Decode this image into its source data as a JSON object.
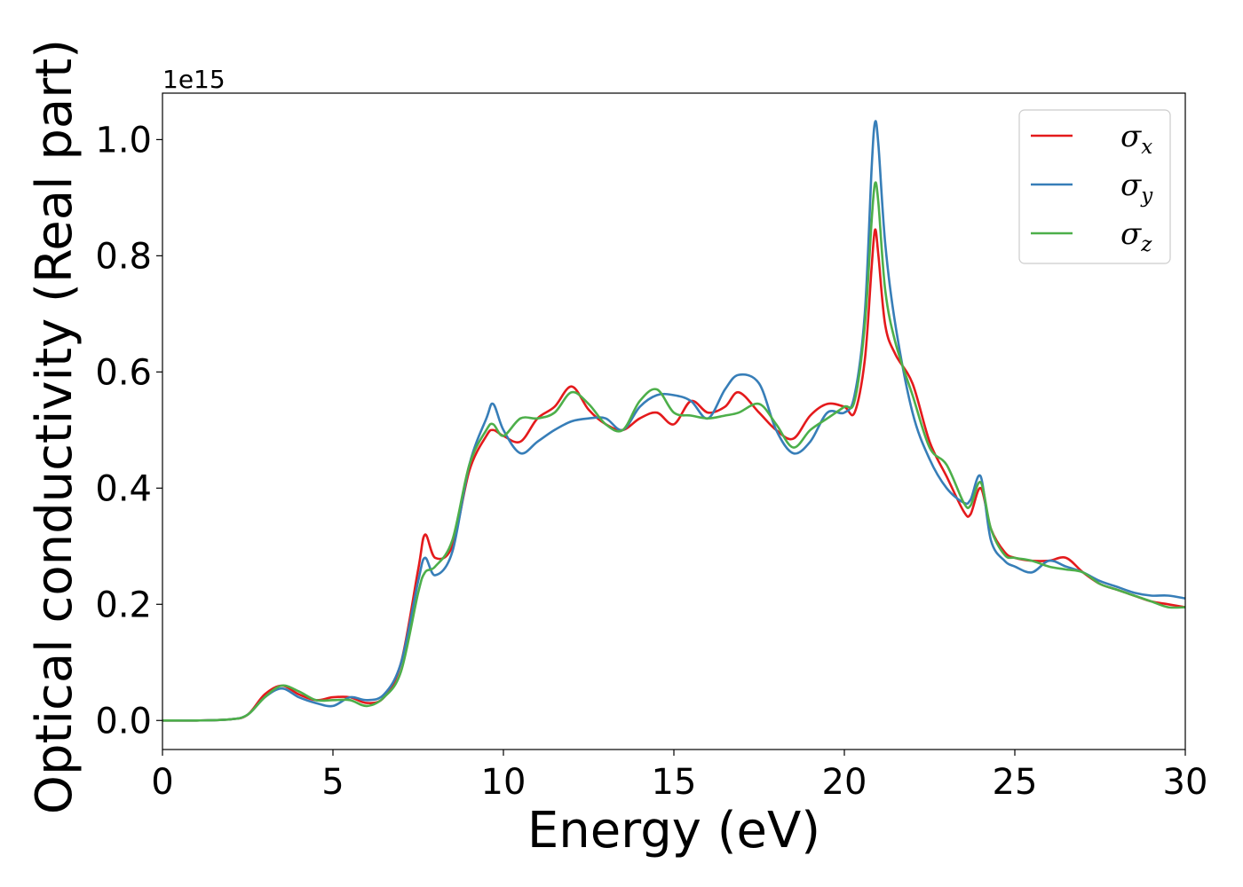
{
  "chart_data": {
    "type": "line",
    "title": "",
    "xlabel": "Energy (eV)",
    "ylabel": "Optical conductivity (Real part)",
    "y_offset_text": "1e15",
    "xlim": [
      0,
      30
    ],
    "ylim": [
      -0.05,
      1.08
    ],
    "x_ticks": [
      0,
      5,
      10,
      15,
      20,
      25,
      30
    ],
    "x_tick_labels": [
      "0",
      "5",
      "10",
      "15",
      "20",
      "25",
      "30"
    ],
    "y_ticks": [
      0.0,
      0.2,
      0.4,
      0.6,
      0.8,
      1.0
    ],
    "y_tick_labels": [
      "0.0",
      "0.2",
      "0.4",
      "0.6",
      "0.8",
      "1.0"
    ],
    "grid": false,
    "legend_position": "top-right",
    "x": [
      0,
      1,
      2,
      2.5,
      3,
      3.5,
      4,
      4.5,
      5,
      5.5,
      6,
      6.5,
      7,
      7.5,
      7.7,
      8,
      8.5,
      9,
      9.5,
      9.7,
      10,
      10.5,
      11,
      11.5,
      12,
      12.5,
      13,
      13.5,
      14,
      14.5,
      15,
      15.5,
      16,
      16.5,
      16.9,
      17.5,
      18,
      18.5,
      19,
      19.5,
      20,
      20.3,
      20.6,
      20.8,
      20.9,
      21,
      21.2,
      21.5,
      22,
      22.5,
      23,
      23.5,
      23.7,
      24,
      24.3,
      24.7,
      25,
      25.5,
      26,
      26.5,
      27,
      27.5,
      28,
      28.5,
      29,
      29.5,
      30
    ],
    "series": [
      {
        "name": "σx",
        "color": "#e41a1c",
        "values": [
          0,
          0,
          0.002,
          0.01,
          0.045,
          0.06,
          0.045,
          0.035,
          0.04,
          0.04,
          0.03,
          0.04,
          0.1,
          0.26,
          0.32,
          0.28,
          0.3,
          0.43,
          0.49,
          0.5,
          0.49,
          0.48,
          0.52,
          0.54,
          0.575,
          0.535,
          0.51,
          0.5,
          0.52,
          0.53,
          0.51,
          0.55,
          0.53,
          0.54,
          0.565,
          0.53,
          0.5,
          0.485,
          0.525,
          0.545,
          0.54,
          0.53,
          0.62,
          0.78,
          0.845,
          0.8,
          0.68,
          0.63,
          0.58,
          0.48,
          0.42,
          0.36,
          0.355,
          0.4,
          0.33,
          0.29,
          0.28,
          0.275,
          0.275,
          0.28,
          0.255,
          0.235,
          0.225,
          0.215,
          0.205,
          0.2,
          0.195
        ]
      },
      {
        "name": "σy",
        "color": "#377eb8",
        "values": [
          0,
          0,
          0.002,
          0.01,
          0.04,
          0.055,
          0.04,
          0.03,
          0.025,
          0.04,
          0.035,
          0.045,
          0.1,
          0.24,
          0.28,
          0.25,
          0.29,
          0.44,
          0.52,
          0.545,
          0.5,
          0.46,
          0.48,
          0.5,
          0.515,
          0.52,
          0.52,
          0.5,
          0.54,
          0.56,
          0.56,
          0.55,
          0.52,
          0.57,
          0.595,
          0.58,
          0.5,
          0.46,
          0.48,
          0.53,
          0.53,
          0.56,
          0.7,
          0.95,
          1.03,
          0.99,
          0.82,
          0.68,
          0.53,
          0.45,
          0.4,
          0.375,
          0.38,
          0.42,
          0.31,
          0.275,
          0.265,
          0.255,
          0.275,
          0.265,
          0.255,
          0.24,
          0.23,
          0.22,
          0.215,
          0.215,
          0.21
        ]
      },
      {
        "name": "σz",
        "color": "#4daf4a",
        "values": [
          0,
          0,
          0.002,
          0.01,
          0.04,
          0.06,
          0.05,
          0.035,
          0.035,
          0.035,
          0.025,
          0.04,
          0.085,
          0.22,
          0.255,
          0.265,
          0.31,
          0.44,
          0.5,
          0.51,
          0.49,
          0.52,
          0.52,
          0.53,
          0.565,
          0.545,
          0.51,
          0.5,
          0.55,
          0.57,
          0.53,
          0.525,
          0.52,
          0.525,
          0.53,
          0.545,
          0.51,
          0.47,
          0.5,
          0.52,
          0.54,
          0.55,
          0.68,
          0.86,
          0.925,
          0.89,
          0.74,
          0.65,
          0.56,
          0.47,
          0.44,
          0.375,
          0.37,
          0.41,
          0.33,
          0.285,
          0.28,
          0.275,
          0.265,
          0.26,
          0.255,
          0.235,
          0.225,
          0.215,
          0.205,
          0.195,
          0.195
        ]
      }
    ]
  }
}
